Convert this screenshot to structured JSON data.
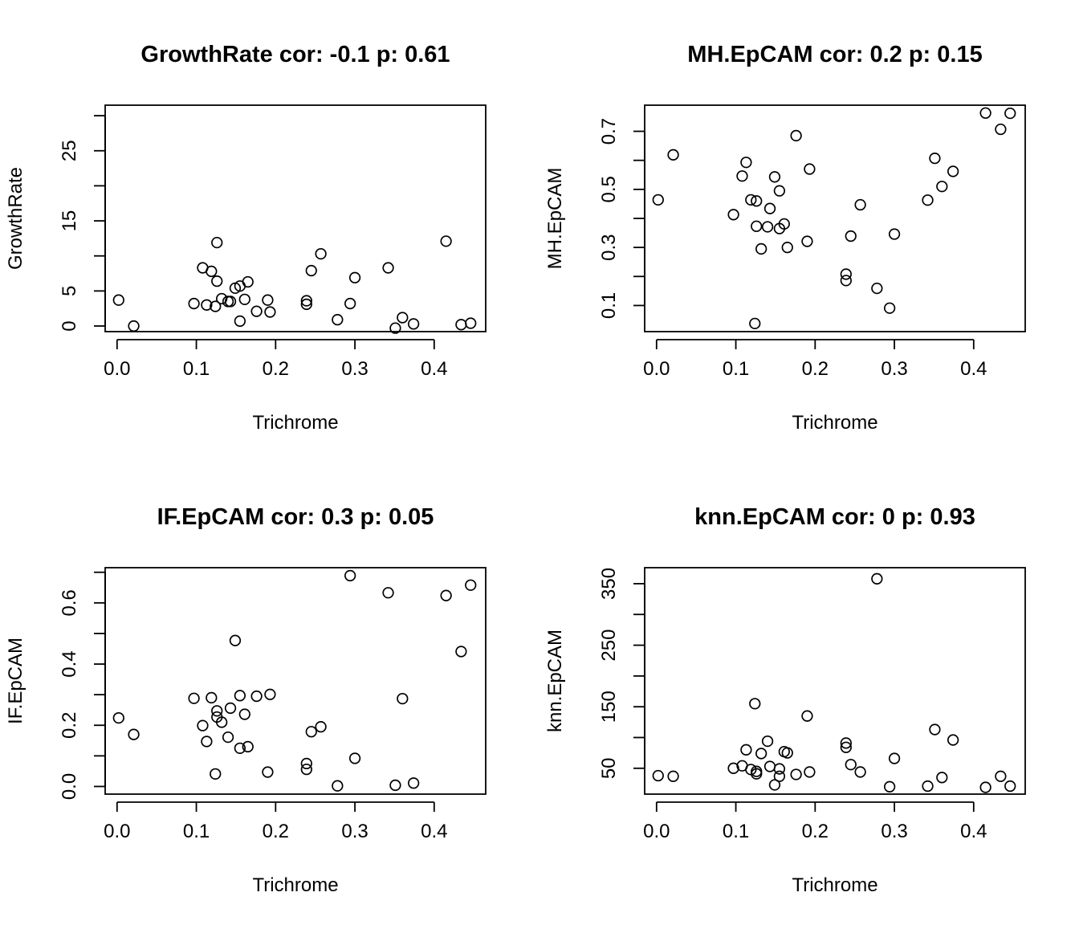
{
  "chart_data": [
    {
      "type": "scatter",
      "title": "GrowthRate cor: -0.1 p: 0.61",
      "xlabel": "Trichrome",
      "ylabel": "GrowthRate",
      "xlim": [
        -0.015,
        0.465
      ],
      "ylim": [
        -0.8,
        31.5
      ],
      "xticks": [
        0.0,
        0.1,
        0.2,
        0.3,
        0.4
      ],
      "xtick_labels": [
        "0.0",
        "0.1",
        "0.2",
        "0.3",
        "0.4"
      ],
      "yticks": [
        0,
        5,
        10,
        15,
        20,
        25,
        30
      ],
      "ytick_labels": [
        "0",
        "5",
        "",
        "15",
        "",
        "25",
        ""
      ],
      "points": [
        {
          "x": 0.002,
          "y": 3.7
        },
        {
          "x": 0.021,
          "y": 0.0
        },
        {
          "x": 0.097,
          "y": 3.2
        },
        {
          "x": 0.108,
          "y": 8.3
        },
        {
          "x": 0.113,
          "y": 3.0
        },
        {
          "x": 0.119,
          "y": 7.8
        },
        {
          "x": 0.124,
          "y": 2.8
        },
        {
          "x": 0.126,
          "y": 6.4
        },
        {
          "x": 0.126,
          "y": 11.9
        },
        {
          "x": 0.132,
          "y": 3.9
        },
        {
          "x": 0.14,
          "y": 3.5
        },
        {
          "x": 0.143,
          "y": 3.5
        },
        {
          "x": 0.149,
          "y": 5.4
        },
        {
          "x": 0.155,
          "y": 0.7
        },
        {
          "x": 0.155,
          "y": 5.7
        },
        {
          "x": 0.161,
          "y": 3.8
        },
        {
          "x": 0.165,
          "y": 6.3
        },
        {
          "x": 0.176,
          "y": 2.1
        },
        {
          "x": 0.19,
          "y": 3.7
        },
        {
          "x": 0.193,
          "y": 2.0
        },
        {
          "x": 0.239,
          "y": 3.1
        },
        {
          "x": 0.239,
          "y": 3.6
        },
        {
          "x": 0.245,
          "y": 7.9
        },
        {
          "x": 0.257,
          "y": 10.3
        },
        {
          "x": 0.278,
          "y": 0.9
        },
        {
          "x": 0.294,
          "y": 3.2
        },
        {
          "x": 0.3,
          "y": 6.9
        },
        {
          "x": 0.342,
          "y": 8.3
        },
        {
          "x": 0.351,
          "y": -0.3
        },
        {
          "x": 0.36,
          "y": 1.2
        },
        {
          "x": 0.374,
          "y": 0.3
        },
        {
          "x": 0.415,
          "y": 12.1
        },
        {
          "x": 0.434,
          "y": 0.2
        },
        {
          "x": 0.446,
          "y": 0.4
        }
      ]
    },
    {
      "type": "scatter",
      "title": "MH.EpCAM cor: 0.2 p: 0.15",
      "xlabel": "Trichrome",
      "ylabel": "MH.EpCAM",
      "xlim": [
        -0.015,
        0.465
      ],
      "ylim": [
        0.01,
        0.79
      ],
      "xticks": [
        0.0,
        0.1,
        0.2,
        0.3,
        0.4
      ],
      "xtick_labels": [
        "0.0",
        "0.1",
        "0.2",
        "0.3",
        "0.4"
      ],
      "yticks": [
        0.1,
        0.2,
        0.3,
        0.4,
        0.5,
        0.6,
        0.7
      ],
      "ytick_labels": [
        "0.1",
        "",
        "0.3",
        "",
        "0.5",
        "",
        "0.7"
      ],
      "points": [
        {
          "x": 0.002,
          "y": 0.464
        },
        {
          "x": 0.021,
          "y": 0.619
        },
        {
          "x": 0.097,
          "y": 0.413
        },
        {
          "x": 0.108,
          "y": 0.546
        },
        {
          "x": 0.113,
          "y": 0.593
        },
        {
          "x": 0.119,
          "y": 0.464
        },
        {
          "x": 0.124,
          "y": 0.038
        },
        {
          "x": 0.126,
          "y": 0.373
        },
        {
          "x": 0.126,
          "y": 0.46
        },
        {
          "x": 0.132,
          "y": 0.295
        },
        {
          "x": 0.14,
          "y": 0.371
        },
        {
          "x": 0.143,
          "y": 0.434
        },
        {
          "x": 0.149,
          "y": 0.543
        },
        {
          "x": 0.155,
          "y": 0.365
        },
        {
          "x": 0.155,
          "y": 0.495
        },
        {
          "x": 0.161,
          "y": 0.381
        },
        {
          "x": 0.165,
          "y": 0.3
        },
        {
          "x": 0.176,
          "y": 0.685
        },
        {
          "x": 0.19,
          "y": 0.321
        },
        {
          "x": 0.193,
          "y": 0.57
        },
        {
          "x": 0.239,
          "y": 0.186
        },
        {
          "x": 0.239,
          "y": 0.208
        },
        {
          "x": 0.245,
          "y": 0.339
        },
        {
          "x": 0.257,
          "y": 0.447
        },
        {
          "x": 0.278,
          "y": 0.159
        },
        {
          "x": 0.294,
          "y": 0.091
        },
        {
          "x": 0.3,
          "y": 0.346
        },
        {
          "x": 0.342,
          "y": 0.463
        },
        {
          "x": 0.351,
          "y": 0.607
        },
        {
          "x": 0.36,
          "y": 0.51
        },
        {
          "x": 0.374,
          "y": 0.562
        },
        {
          "x": 0.415,
          "y": 0.763
        },
        {
          "x": 0.434,
          "y": 0.707
        },
        {
          "x": 0.446,
          "y": 0.762
        }
      ]
    },
    {
      "type": "scatter",
      "title": "IF.EpCAM cor: 0.3 p: 0.05",
      "xlabel": "Trichrome",
      "ylabel": "IF.EpCAM",
      "xlim": [
        -0.015,
        0.465
      ],
      "ylim": [
        -0.025,
        0.715
      ],
      "xticks": [
        0.0,
        0.1,
        0.2,
        0.3,
        0.4
      ],
      "xtick_labels": [
        "0.0",
        "0.1",
        "0.2",
        "0.3",
        "0.4"
      ],
      "yticks": [
        0.0,
        0.1,
        0.2,
        0.3,
        0.4,
        0.5,
        0.6,
        0.7
      ],
      "ytick_labels": [
        "0.0",
        "",
        "0.2",
        "",
        "0.4",
        "",
        "0.6",
        ""
      ],
      "points": [
        {
          "x": 0.002,
          "y": 0.224
        },
        {
          "x": 0.021,
          "y": 0.17
        },
        {
          "x": 0.097,
          "y": 0.288
        },
        {
          "x": 0.108,
          "y": 0.199
        },
        {
          "x": 0.113,
          "y": 0.147
        },
        {
          "x": 0.119,
          "y": 0.29
        },
        {
          "x": 0.124,
          "y": 0.041
        },
        {
          "x": 0.126,
          "y": 0.227
        },
        {
          "x": 0.126,
          "y": 0.247
        },
        {
          "x": 0.132,
          "y": 0.21
        },
        {
          "x": 0.14,
          "y": 0.161
        },
        {
          "x": 0.143,
          "y": 0.256
        },
        {
          "x": 0.149,
          "y": 0.477
        },
        {
          "x": 0.155,
          "y": 0.125
        },
        {
          "x": 0.155,
          "y": 0.297
        },
        {
          "x": 0.161,
          "y": 0.236
        },
        {
          "x": 0.165,
          "y": 0.13
        },
        {
          "x": 0.176,
          "y": 0.295
        },
        {
          "x": 0.19,
          "y": 0.047
        },
        {
          "x": 0.193,
          "y": 0.301
        },
        {
          "x": 0.239,
          "y": 0.056
        },
        {
          "x": 0.239,
          "y": 0.075
        },
        {
          "x": 0.245,
          "y": 0.179
        },
        {
          "x": 0.257,
          "y": 0.195
        },
        {
          "x": 0.278,
          "y": 0.002
        },
        {
          "x": 0.294,
          "y": 0.689
        },
        {
          "x": 0.3,
          "y": 0.092
        },
        {
          "x": 0.342,
          "y": 0.633
        },
        {
          "x": 0.351,
          "y": 0.004
        },
        {
          "x": 0.36,
          "y": 0.287
        },
        {
          "x": 0.374,
          "y": 0.011
        },
        {
          "x": 0.415,
          "y": 0.624
        },
        {
          "x": 0.434,
          "y": 0.441
        },
        {
          "x": 0.446,
          "y": 0.658
        }
      ]
    },
    {
      "type": "scatter",
      "title": "knn.EpCAM cor: 0 p: 0.93",
      "xlabel": "Trichrome",
      "ylabel": "knn.EpCAM",
      "xlim": [
        -0.015,
        0.465
      ],
      "ylim": [
        8.0,
        376.0
      ],
      "xticks": [
        0.0,
        0.1,
        0.2,
        0.3,
        0.4
      ],
      "xtick_labels": [
        "0.0",
        "0.1",
        "0.2",
        "0.3",
        "0.4"
      ],
      "yticks": [
        50,
        100,
        150,
        200,
        250,
        300,
        350
      ],
      "ytick_labels": [
        "50",
        "",
        "150",
        "",
        "250",
        "",
        "350"
      ],
      "points": [
        {
          "x": 0.002,
          "y": 38
        },
        {
          "x": 0.021,
          "y": 37
        },
        {
          "x": 0.097,
          "y": 50
        },
        {
          "x": 0.108,
          "y": 54
        },
        {
          "x": 0.113,
          "y": 80
        },
        {
          "x": 0.119,
          "y": 48
        },
        {
          "x": 0.124,
          "y": 155
        },
        {
          "x": 0.126,
          "y": 41
        },
        {
          "x": 0.126,
          "y": 45
        },
        {
          "x": 0.132,
          "y": 74
        },
        {
          "x": 0.14,
          "y": 94
        },
        {
          "x": 0.143,
          "y": 53
        },
        {
          "x": 0.149,
          "y": 23
        },
        {
          "x": 0.155,
          "y": 37
        },
        {
          "x": 0.155,
          "y": 49
        },
        {
          "x": 0.161,
          "y": 77
        },
        {
          "x": 0.165,
          "y": 75
        },
        {
          "x": 0.176,
          "y": 40
        },
        {
          "x": 0.19,
          "y": 135
        },
        {
          "x": 0.193,
          "y": 44
        },
        {
          "x": 0.239,
          "y": 84
        },
        {
          "x": 0.239,
          "y": 91
        },
        {
          "x": 0.245,
          "y": 56
        },
        {
          "x": 0.257,
          "y": 44
        },
        {
          "x": 0.278,
          "y": 358
        },
        {
          "x": 0.294,
          "y": 20
        },
        {
          "x": 0.3,
          "y": 66
        },
        {
          "x": 0.342,
          "y": 21
        },
        {
          "x": 0.351,
          "y": 113
        },
        {
          "x": 0.36,
          "y": 35
        },
        {
          "x": 0.374,
          "y": 96
        },
        {
          "x": 0.415,
          "y": 19
        },
        {
          "x": 0.434,
          "y": 37
        },
        {
          "x": 0.446,
          "y": 21
        }
      ]
    }
  ]
}
